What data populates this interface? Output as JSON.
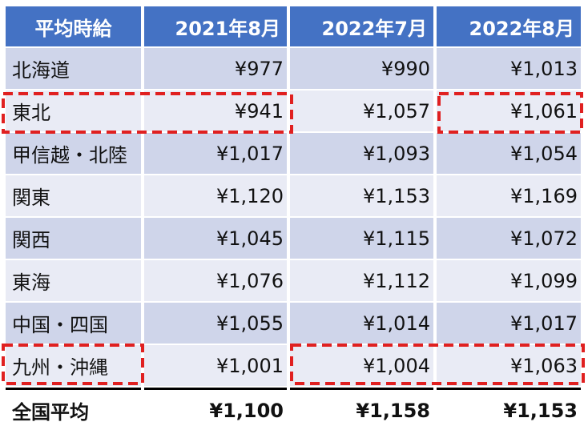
{
  "chart_data": {
    "type": "table",
    "title": "",
    "columns": [
      "平均時給",
      "2021年8月",
      "2022年7月",
      "2022年8月"
    ],
    "rows": [
      {
        "label": "北海道",
        "values": [
          "¥977",
          "¥990",
          "¥1,013"
        ]
      },
      {
        "label": "東北",
        "values": [
          "¥941",
          "¥1,057",
          "¥1,061"
        ]
      },
      {
        "label": "甲信越・北陸",
        "values": [
          "¥1,017",
          "¥1,093",
          "¥1,054"
        ]
      },
      {
        "label": "関東",
        "values": [
          "¥1,120",
          "¥1,153",
          "¥1,169"
        ]
      },
      {
        "label": "関西",
        "values": [
          "¥1,045",
          "¥1,115",
          "¥1,072"
        ]
      },
      {
        "label": "東海",
        "values": [
          "¥1,076",
          "¥1,112",
          "¥1,099"
        ]
      },
      {
        "label": "中国・四国",
        "values": [
          "¥1,055",
          "¥1,014",
          "¥1,017"
        ]
      },
      {
        "label": "九州・沖縄",
        "values": [
          "¥1,001",
          "¥1,004",
          "¥1,063"
        ]
      }
    ],
    "total": {
      "label": "全国平均",
      "values": [
        "¥1,100",
        "¥1,158",
        "¥1,153"
      ]
    },
    "highlight_color": "#e02020",
    "header_color": "#4472c4",
    "row_colors": [
      "#cfd5ea",
      "#e9ebf5"
    ]
  }
}
